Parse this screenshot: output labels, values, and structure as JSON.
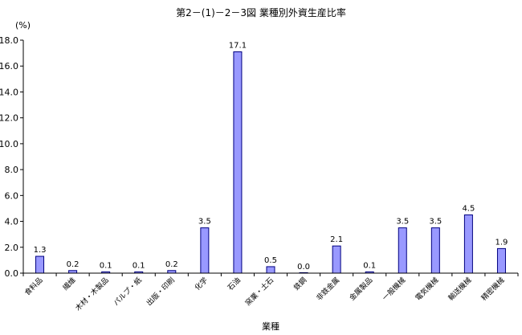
{
  "chart_data": {
    "type": "bar",
    "title": "第2－(1)－2－3図 業種別外資生産比率",
    "ylabel": "(%)",
    "xlabel": "業種",
    "ylim": [
      0,
      18
    ],
    "yticks": [
      "0.0",
      "2.0",
      "4.0",
      "6.0",
      "8.0",
      "10.0",
      "12.0",
      "14.0",
      "16.0",
      "18.0"
    ],
    "categories": [
      "食料品",
      "繊維",
      "木材・木製品",
      "パルプ・紙",
      "出版・印刷",
      "化学",
      "石油",
      "窯業・土石",
      "鉄鋼",
      "非鉄金属",
      "金属製品",
      "一般機械",
      "電気機械",
      "輸送機械",
      "精密機械"
    ],
    "values": [
      1.3,
      0.2,
      0.1,
      0.1,
      0.2,
      3.5,
      17.1,
      0.5,
      0.0,
      2.1,
      0.1,
      3.5,
      3.5,
      4.5,
      1.9
    ],
    "value_labels": [
      "1.3",
      "0.2",
      "0.1",
      "0.1",
      "0.2",
      "3.5",
      "17.1",
      "0.5",
      "0.0",
      "2.1",
      "0.1",
      "3.5",
      "3.5",
      "4.5",
      "1.9"
    ],
    "grid": false,
    "legend": "none",
    "colors": {
      "bar_fill": "#9999ff",
      "bar_stroke": "#000080",
      "axis": "#000000"
    }
  }
}
